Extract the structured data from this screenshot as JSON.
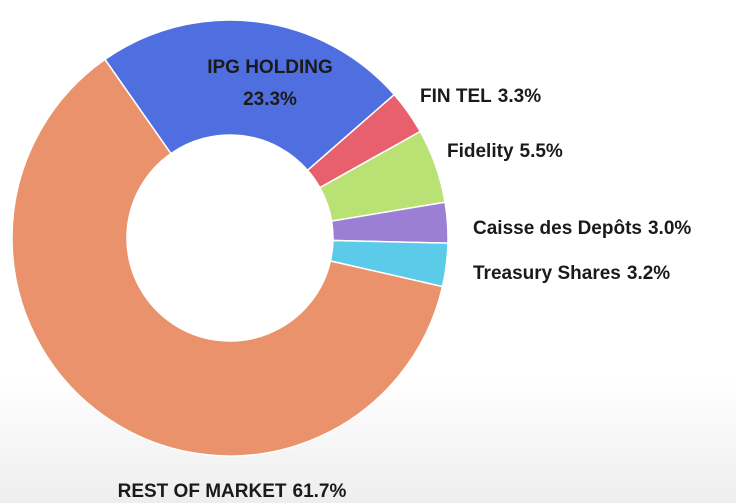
{
  "chart_data": {
    "type": "donut",
    "categories": [
      "IPG HOLDING",
      "FIN TEL",
      "Fidelity",
      "Caisse des Depôts",
      "Treasury Shares",
      "REST OF MARKET"
    ],
    "values": [
      23.3,
      3.3,
      5.5,
      3.0,
      3.2,
      61.7
    ],
    "value_labels": [
      "23.3%",
      "3.3%",
      "5.5%",
      "3.0%",
      "3.2%",
      "61.7%"
    ],
    "colors": [
      "#4f6fe0",
      "#e8606e",
      "#b9e173",
      "#9b7fd4",
      "#5ccbea",
      "#ea926c"
    ]
  }
}
